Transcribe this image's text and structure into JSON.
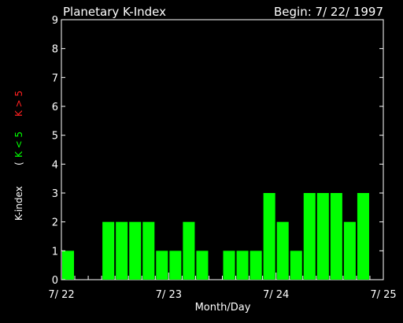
{
  "chart_data": {
    "type": "bar",
    "title": "Planetary K-Index",
    "begin_label": "Begin: 7/ 22/ 1997",
    "xlabel": "Month/Day",
    "ylabel_prefix": "K-index",
    "ylabel_green": "K < 5",
    "ylabel_red": "K > 5",
    "ylim": [
      0,
      9
    ],
    "yticks": [
      "0",
      "1",
      "2",
      "3",
      "4",
      "5",
      "6",
      "7",
      "8",
      "9"
    ],
    "xticks": [
      "7/ 22",
      "7/ 23",
      "7/ 24",
      "7/ 25"
    ],
    "bar_color": "#00ff00",
    "values": [
      1,
      0,
      0,
      2,
      2,
      2,
      2,
      1,
      1,
      2,
      1,
      0,
      1,
      1,
      1,
      3,
      2,
      1,
      3,
      3,
      3,
      2,
      3,
      0
    ]
  }
}
